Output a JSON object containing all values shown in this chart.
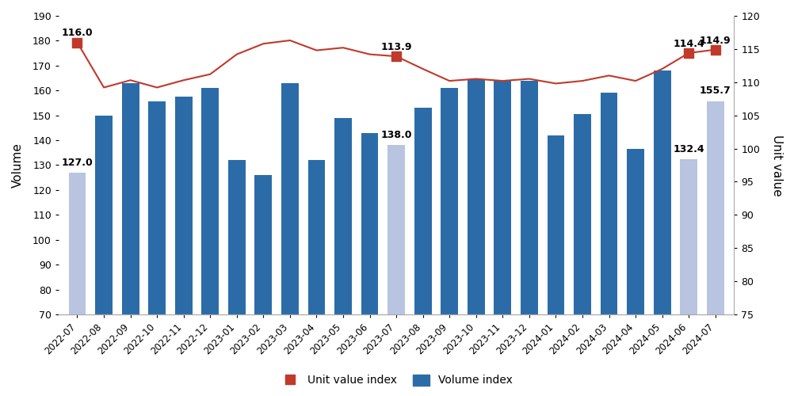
{
  "categories": [
    "2022-07",
    "2022-08",
    "2022-09",
    "2022-10",
    "2022-11",
    "2022-12",
    "2023-01",
    "2023-02",
    "2023-03",
    "2023-04",
    "2023-05",
    "2023-06",
    "2023-07",
    "2023-08",
    "2023-09",
    "2023-10",
    "2023-11",
    "2023-12",
    "2024-01",
    "2024-02",
    "2024-03",
    "2024-04",
    "2024-05",
    "2024-06",
    "2024-07"
  ],
  "volume_index": [
    127.0,
    150.0,
    163.0,
    155.5,
    157.5,
    161.0,
    132.0,
    126.0,
    163.0,
    132.0,
    149.0,
    143.0,
    138.0,
    153.0,
    161.0,
    164.5,
    164.0,
    164.0,
    142.0,
    150.5,
    159.0,
    136.5,
    168.0,
    132.4,
    155.7
  ],
  "unit_value_index": [
    116.0,
    109.2,
    110.3,
    109.2,
    110.3,
    111.2,
    114.2,
    115.8,
    116.3,
    114.8,
    115.2,
    114.2,
    113.9,
    112.0,
    110.2,
    110.5,
    110.2,
    110.5,
    109.8,
    110.2,
    111.0,
    110.2,
    112.0,
    114.4,
    114.9
  ],
  "highlighted_bars": [
    0,
    12,
    23,
    24
  ],
  "highlighted_color": "#b8c4e0",
  "normal_bar_color": "#2b6ca8",
  "line_color": "#c0392b",
  "ylabel_left": "Volume",
  "ylabel_right": "Unit value",
  "ylim_left": [
    70,
    190
  ],
  "ylim_right": [
    75,
    120
  ],
  "yticks_left": [
    70,
    80,
    90,
    100,
    110,
    120,
    130,
    140,
    150,
    160,
    170,
    180,
    190
  ],
  "yticks_right": [
    75,
    80,
    85,
    90,
    95,
    100,
    105,
    110,
    115,
    120
  ],
  "annotations": {
    "0": {
      "value": "127.0",
      "uv": "116.0"
    },
    "12": {
      "value": "138.0",
      "uv": "113.9"
    },
    "23": {
      "value": "132.4",
      "uv": "114.4"
    },
    "24": {
      "value": "155.7",
      "uv": "114.9"
    }
  },
  "legend_uv_label": "Unit value index",
  "legend_vol_label": "Volume index",
  "background_color": "#ffffff"
}
